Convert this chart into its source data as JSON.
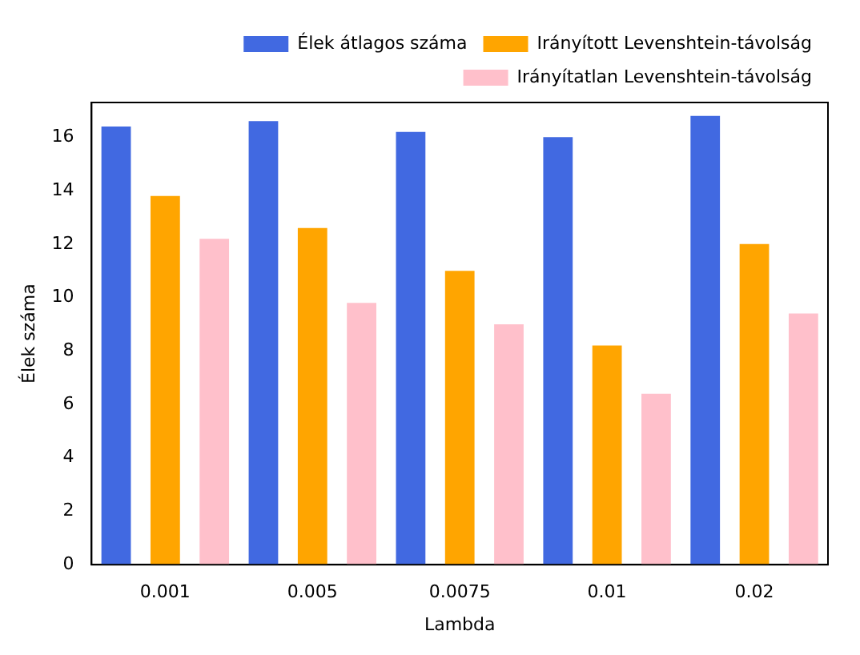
{
  "chart_data": {
    "type": "bar",
    "xlabel": "Lambda",
    "ylabel": "Élek száma",
    "categories": [
      "0.001",
      "0.005",
      "0.0075",
      "0.01",
      "0.02"
    ],
    "series": [
      {
        "name": "Élek átlagos száma",
        "color": "#4169e1",
        "values": [
          16.4,
          16.6,
          16.2,
          16.0,
          16.8
        ]
      },
      {
        "name": "Irányított Levenshtein-távolság",
        "color": "#ffa500",
        "values": [
          13.8,
          12.6,
          11.0,
          8.2,
          12.0
        ]
      },
      {
        "name": "Irányítatlan Levenshtein-távolság",
        "color": "#ffc0cb",
        "values": [
          12.2,
          9.8,
          9.0,
          6.4,
          9.4
        ]
      }
    ],
    "ylim": [
      0,
      17.3
    ],
    "yticks": [
      0,
      2,
      4,
      6,
      8,
      10,
      12,
      14,
      16
    ],
    "grid": false,
    "legend": "top"
  }
}
